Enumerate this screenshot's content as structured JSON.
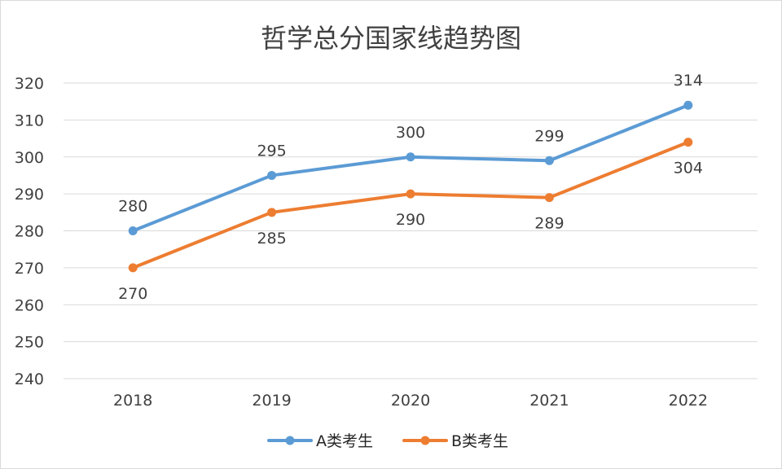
{
  "chart_data": {
    "type": "line",
    "title": "哲学总分国家线趋势图",
    "categories": [
      "2018",
      "2019",
      "2020",
      "2021",
      "2022"
    ],
    "series": [
      {
        "name": "A类考生",
        "color": "#5b9bd5",
        "values": [
          280,
          295,
          300,
          299,
          314
        ]
      },
      {
        "name": "B类考生",
        "color": "#ed7d31",
        "values": [
          270,
          285,
          290,
          289,
          304
        ]
      }
    ],
    "ylim": [
      240,
      320
    ],
    "yticks": [
      "240",
      "250",
      "260",
      "270",
      "280",
      "290",
      "300",
      "310",
      "320"
    ],
    "grid": true,
    "legend_position": "bottom",
    "data_labels": {
      "A类考生": [
        "280",
        "295",
        "300",
        "299",
        "314"
      ],
      "B类考生": [
        "270",
        "285",
        "290",
        "289",
        "304"
      ]
    }
  }
}
